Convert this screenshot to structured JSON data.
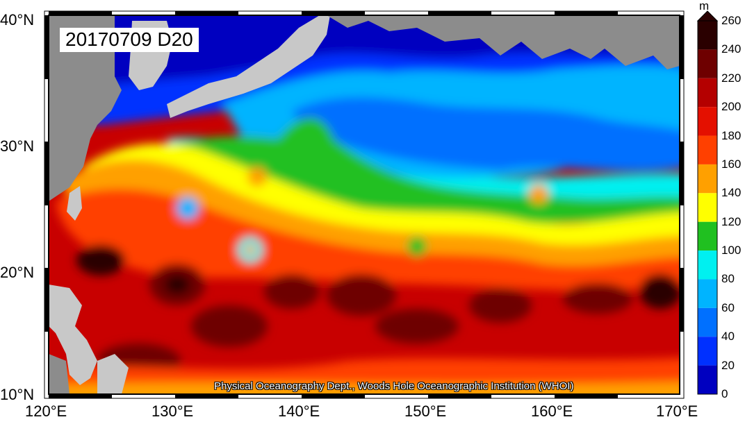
{
  "map": {
    "title": "20170709 D20",
    "credit": "Physical Oceanography Dept., Woods Hole Oceanographic Institution (WHOI)",
    "lat_labels": [
      "40°N",
      "30°N",
      "20°N",
      "10°N"
    ],
    "lon_labels": [
      "120°E",
      "130°E",
      "140°E",
      "150°E",
      "160°E",
      "170°E"
    ],
    "land_color": "#8c8c8c",
    "land_light_color": "#c8c8c8"
  },
  "colorbar": {
    "unit": "m",
    "ticks": [
      "260",
      "240",
      "220",
      "200",
      "180",
      "160",
      "140",
      "120",
      "100",
      "80",
      "60",
      "40",
      "20",
      "0"
    ],
    "colors": [
      "#2a0000",
      "#6e0000",
      "#b40000",
      "#e41000",
      "#ff4000",
      "#ffa000",
      "#ffff00",
      "#20c020",
      "#00f0f0",
      "#00b4ff",
      "#0070ff",
      "#0030ff",
      "#0000c0"
    ]
  }
}
